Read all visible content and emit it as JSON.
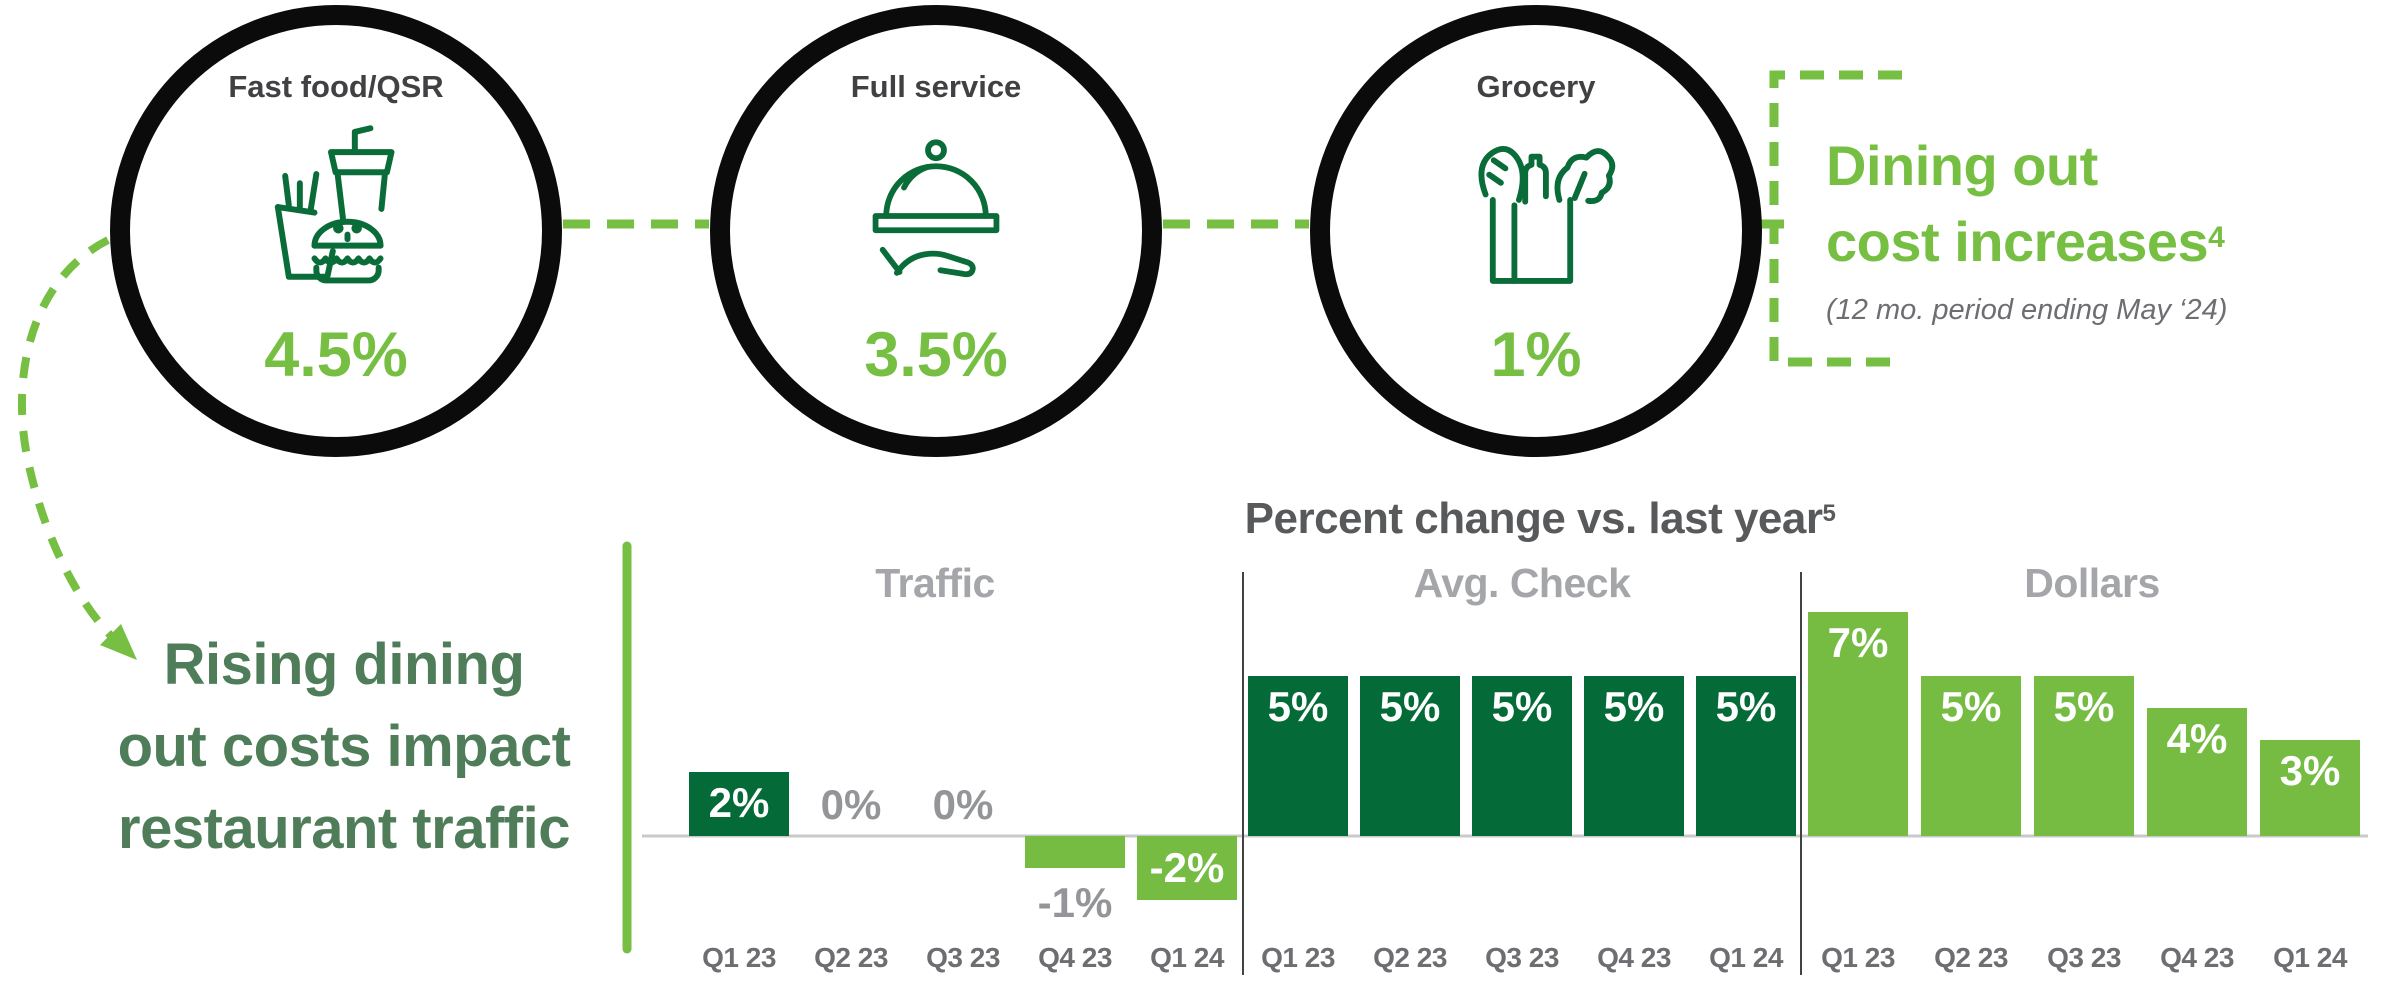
{
  "palette": {
    "light_green": "#76bf43",
    "bar_light_green": "#76bc43",
    "bar_dark_green": "#046a38",
    "icon_green": "#0a6c38",
    "headline_green": "#4f7d5a",
    "circle_ring_black": "#0b0b0b",
    "title_gray": "#58595b",
    "section_title_gray": "#a4a6a9",
    "axis_label_gray": "#6d6e71",
    "muted_label_gray": "#939598",
    "circle_label_gray": "#414042",
    "baseline_gray": "#c8c9ca"
  },
  "cost_section": {
    "circles": [
      {
        "name": "fast-food",
        "label": "Fast food/QSR",
        "value": "4.5%"
      },
      {
        "name": "full-service",
        "label": "Full service",
        "value": "3.5%"
      },
      {
        "name": "grocery",
        "label": "Grocery",
        "value": "1%"
      }
    ],
    "callout": {
      "title_line1": "Dining out",
      "title_line2": "cost increases",
      "footnote": "4",
      "subtitle": "(12 mo. period ending May ‘24)"
    }
  },
  "headline": {
    "line1": "Rising dining",
    "line2": "out costs impact",
    "line3": "restaurant traffic"
  },
  "chart_data": {
    "type": "bar",
    "title": "Percent change vs. last year",
    "title_footnote": "5",
    "categories": [
      "Q1 23",
      "Q2 23",
      "Q3 23",
      "Q4 23",
      "Q1 24"
    ],
    "series": [
      {
        "name": "Traffic",
        "values": [
          2,
          0,
          0,
          -1,
          -2
        ],
        "labels": [
          "2%",
          "0%",
          "0%",
          "-1%",
          "-2%"
        ],
        "bar_tones": [
          "dark",
          "none",
          "none",
          "light",
          "light"
        ],
        "label_pos": [
          "inside",
          "zero",
          "zero",
          "below",
          "inside"
        ]
      },
      {
        "name": "Avg. Check",
        "values": [
          5,
          5,
          5,
          5,
          5
        ],
        "labels": [
          "5%",
          "5%",
          "5%",
          "5%",
          "5%"
        ],
        "bar_tones": [
          "dark",
          "dark",
          "dark",
          "dark",
          "dark"
        ],
        "label_pos": [
          "inside",
          "inside",
          "inside",
          "inside",
          "inside"
        ]
      },
      {
        "name": "Dollars",
        "values": [
          7,
          5,
          5,
          4,
          3
        ],
        "labels": [
          "7%",
          "5%",
          "5%",
          "4%",
          "3%"
        ],
        "bar_tones": [
          "light",
          "light",
          "light",
          "light",
          "light"
        ],
        "label_pos": [
          "inside",
          "inside",
          "inside",
          "inside",
          "inside"
        ]
      }
    ],
    "xlabel": "",
    "ylabel": "",
    "ylim": [
      -3,
      8
    ],
    "grid": false,
    "legend": "none",
    "bar_colors": {
      "dark": "#046a38",
      "light": "#76bc43"
    }
  }
}
